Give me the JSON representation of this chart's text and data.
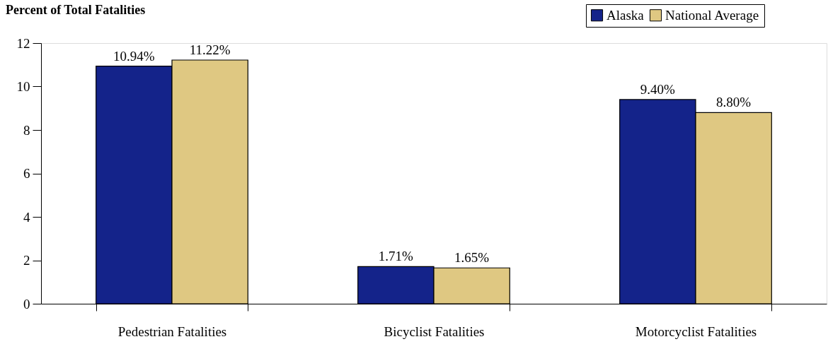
{
  "chart_data": {
    "type": "bar",
    "ylabel": "Percent of Total Fatalities",
    "categories": [
      "Pedestrian Fatalities",
      "Bicyclist Fatalities",
      "Motorcyclist Fatalities"
    ],
    "series": [
      {
        "name": "Alaska",
        "color": "#14238a",
        "values": [
          10.94,
          1.71,
          9.4
        ],
        "value_labels": [
          "10.94%",
          "1.71%",
          "9.40%"
        ]
      },
      {
        "name": "National Average",
        "color": "#dfc882",
        "values": [
          11.22,
          1.65,
          8.8
        ],
        "value_labels": [
          "11.22%",
          "1.65%",
          "8.80%"
        ]
      }
    ],
    "ylim": [
      0,
      12
    ],
    "yticks": [
      0,
      2,
      4,
      6,
      8,
      10,
      12
    ],
    "grid": false,
    "legend": "top right"
  }
}
